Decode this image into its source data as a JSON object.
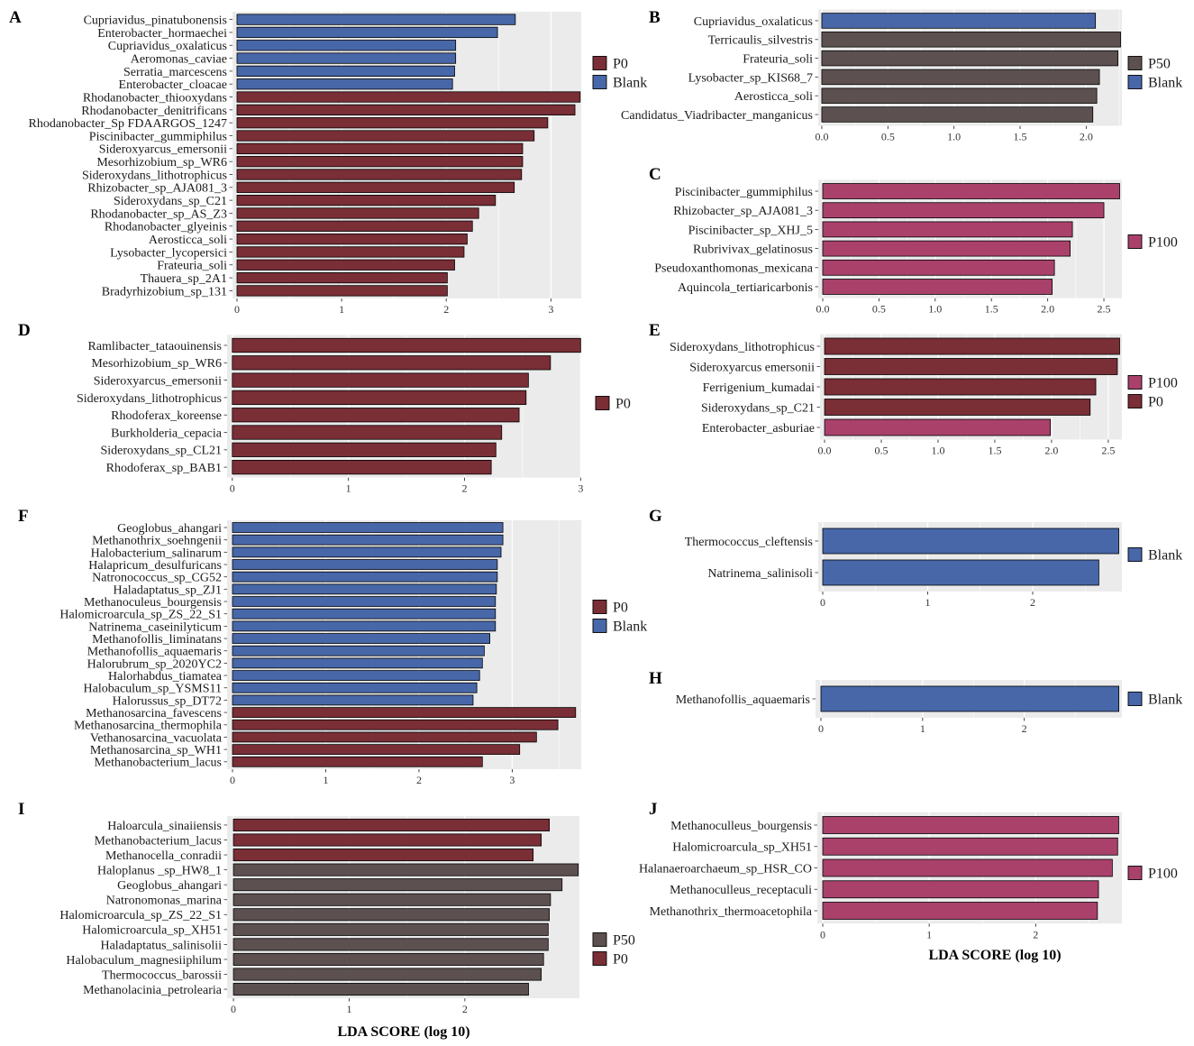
{
  "colors": {
    "Blank": "#4767a8",
    "P0": "#7a2e36",
    "P50": "#5c5150",
    "P100": "#a9416b",
    "panel_background": "#ebebeb",
    "gridline": "#ffffff",
    "bar_outline": "#000000"
  },
  "chart_data": [
    {
      "panel": "A",
      "type": "bar",
      "orientation": "horizontal",
      "xlabel": "",
      "xlim": [
        -0.043,
        3.29
      ],
      "xticks": [
        0,
        1,
        2,
        3
      ],
      "tick_labels": [
        "0",
        "1",
        "2",
        "3"
      ],
      "legend": [
        "P0",
        "Blank"
      ],
      "bars": [
        {
          "label": "Cupriavidus_pinatubonensis",
          "value": 2.66,
          "group": "Blank"
        },
        {
          "label": "Enterobacter_hormaechei",
          "value": 2.49,
          "group": "Blank"
        },
        {
          "label": "Cupriavidus_oxalaticus",
          "value": 2.09,
          "group": "Blank"
        },
        {
          "label": "Aeromonas_caviae",
          "value": 2.09,
          "group": "Blank"
        },
        {
          "label": "Serratia_marcescens",
          "value": 2.08,
          "group": "Blank"
        },
        {
          "label": "Enterobacter_cloacae",
          "value": 2.06,
          "group": "Blank"
        },
        {
          "label": "Rhodanobacter_thiooxydans",
          "value": 3.28,
          "group": "P0"
        },
        {
          "label": "Rhodanobacter_denitrificans",
          "value": 3.23,
          "group": "P0"
        },
        {
          "label": "Rhodanobacter_Sp FDAARGOS_1247",
          "value": 2.97,
          "group": "P0"
        },
        {
          "label": "Piscinibacter_gummiphilus",
          "value": 2.84,
          "group": "P0"
        },
        {
          "label": "Sideroxyarcus_emersonii",
          "value": 2.73,
          "group": "P0"
        },
        {
          "label": "Mesorhizobium_sp_WR6",
          "value": 2.73,
          "group": "P0"
        },
        {
          "label": "Sideroxydans_lithotrophicus",
          "value": 2.72,
          "group": "P0"
        },
        {
          "label": "Rhizobacter_sp_AJA081_3",
          "value": 2.65,
          "group": "P0"
        },
        {
          "label": "Sideroxydans_sp_C21",
          "value": 2.47,
          "group": "P0"
        },
        {
          "label": "Rhodanobacter_sp_AS_Z3",
          "value": 2.31,
          "group": "P0"
        },
        {
          "label": "Rhodanobacter_glyeinis",
          "value": 2.25,
          "group": "P0"
        },
        {
          "label": "Aerosticca_soli",
          "value": 2.2,
          "group": "P0"
        },
        {
          "label": "Lysobacter_lycopersici",
          "value": 2.17,
          "group": "P0"
        },
        {
          "label": "Frateuria_soli",
          "value": 2.08,
          "group": "P0"
        },
        {
          "label": "Thauera_sp_2A1",
          "value": 2.01,
          "group": "P0"
        },
        {
          "label": "Bradyrhizobium_sp_131",
          "value": 2.01,
          "group": "P0"
        }
      ]
    },
    {
      "panel": "B",
      "type": "bar",
      "orientation": "horizontal",
      "xlabel": "",
      "xlim": [
        -0.027,
        2.27
      ],
      "xticks": [
        0,
        0.5,
        1,
        1.5,
        2
      ],
      "tick_labels": [
        "0.0",
        "0.5",
        "1.0",
        "1.5",
        "2.0"
      ],
      "legend": [
        "P50",
        "Blank"
      ],
      "bars": [
        {
          "label": "Cupriavidus_oxalaticus",
          "value": 2.07,
          "group": "Blank"
        },
        {
          "label": "Terricaulis_silvestris",
          "value": 2.26,
          "group": "P50"
        },
        {
          "label": "Frateuria_soli",
          "value": 2.24,
          "group": "P50"
        },
        {
          "label": "Lysobacter_sp_KIS68_7",
          "value": 2.1,
          "group": "P50"
        },
        {
          "label": "Aerosticca_soli",
          "value": 2.08,
          "group": "P50"
        },
        {
          "label": "Candidatus_Viadribacter_manganicus",
          "value": 2.05,
          "group": "P50"
        }
      ]
    },
    {
      "panel": "C",
      "type": "bar",
      "orientation": "horizontal",
      "xlabel": "",
      "xlim": [
        -0.04,
        2.66
      ],
      "xticks": [
        0,
        0.5,
        1,
        1.5,
        2,
        2.5
      ],
      "tick_labels": [
        "0.0",
        "0.5",
        "1.0",
        "1.5",
        "2.0",
        "2.5"
      ],
      "legend": [
        "P100"
      ],
      "bars": [
        {
          "label": "Piscinibacter_gummiphilus",
          "value": 2.64,
          "group": "P100"
        },
        {
          "label": "Rhizobacter_sp_AJA081_3",
          "value": 2.5,
          "group": "P100"
        },
        {
          "label": "Piscinibacter_sp_XHJ_5",
          "value": 2.22,
          "group": "P100"
        },
        {
          "label": "Rubrivivax_gelatinosus",
          "value": 2.2,
          "group": "P100"
        },
        {
          "label": "Pseudoxanthomonas_mexicana",
          "value": 2.06,
          "group": "P100"
        },
        {
          "label": "Aquincola_tertiaricarbonis",
          "value": 2.04,
          "group": "P100"
        }
      ]
    },
    {
      "panel": "D",
      "type": "bar",
      "orientation": "horizontal",
      "xlabel": "",
      "xlim": [
        -0.045,
        3.005
      ],
      "xticks": [
        0,
        1,
        2,
        3
      ],
      "tick_labels": [
        "0",
        "1",
        "2",
        "3"
      ],
      "legend": [
        "P0"
      ],
      "bars": [
        {
          "label": "Ramlibacter_tataouinensis",
          "value": 3.0,
          "group": "P0"
        },
        {
          "label": "Mesorhizobium_sp_WR6",
          "value": 2.74,
          "group": "P0"
        },
        {
          "label": "Sideroxyarcus_emersonii",
          "value": 2.55,
          "group": "P0"
        },
        {
          "label": "Sideroxydans_lithotrophicus",
          "value": 2.53,
          "group": "P0"
        },
        {
          "label": "Rhodoferax_koreense",
          "value": 2.47,
          "group": "P0"
        },
        {
          "label": "Burkholderia_cepacia",
          "value": 2.32,
          "group": "P0"
        },
        {
          "label": "Sideroxydans_sp_CL21",
          "value": 2.27,
          "group": "P0"
        },
        {
          "label": "Rhodoferax_sp_BAB1",
          "value": 2.23,
          "group": "P0"
        }
      ]
    },
    {
      "panel": "E",
      "type": "bar",
      "orientation": "horizontal",
      "xlabel": "",
      "xlim": [
        -0.04,
        2.62
      ],
      "xticks": [
        0,
        0.5,
        1,
        1.5,
        2,
        2.5
      ],
      "tick_labels": [
        "0.0",
        "0.5",
        "1.0",
        "1.5",
        "2.0",
        "2.5"
      ],
      "legend": [
        "P100",
        "P0"
      ],
      "bars": [
        {
          "label": "Sideroxydans_lithotrophicus",
          "value": 2.6,
          "group": "P0"
        },
        {
          "label": "Sideroxyarcus emersonii",
          "value": 2.58,
          "group": "P0"
        },
        {
          "label": "Ferrigenium_kumadai",
          "value": 2.39,
          "group": "P0"
        },
        {
          "label": "Sideroxydans_sp_C21",
          "value": 2.34,
          "group": "P0"
        },
        {
          "label": "Enterobacter_asburiae",
          "value": 1.99,
          "group": "P100"
        }
      ]
    },
    {
      "panel": "F",
      "type": "bar",
      "orientation": "horizontal",
      "xlabel": "",
      "xlim": [
        -0.058,
        3.74
      ],
      "xticks": [
        0,
        1,
        2,
        3
      ],
      "tick_labels": [
        "0",
        "1",
        "2",
        "3"
      ],
      "legend": [
        "P0",
        "Blank"
      ],
      "bars": [
        {
          "label": "Geoglobus_ahangari",
          "value": 2.9,
          "group": "Blank"
        },
        {
          "label": "Methanothrix_soehngenii",
          "value": 2.9,
          "group": "Blank"
        },
        {
          "label": "Halobacterium_salinarum",
          "value": 2.88,
          "group": "Blank"
        },
        {
          "label": "Halapricum_desulfuricans",
          "value": 2.84,
          "group": "Blank"
        },
        {
          "label": "Natronococcus_sp_CG52",
          "value": 2.84,
          "group": "Blank"
        },
        {
          "label": "Haladaptatus_sp_ZJ1",
          "value": 2.83,
          "group": "Blank"
        },
        {
          "label": "Methanoculeus_bourgensis",
          "value": 2.82,
          "group": "Blank"
        },
        {
          "label": "Halomicroarcula_sp_ZS_22_S1",
          "value": 2.82,
          "group": "Blank"
        },
        {
          "label": "Natrinema_caseinilyticum",
          "value": 2.82,
          "group": "Blank"
        },
        {
          "label": "Methanofollis_liminatans",
          "value": 2.76,
          "group": "Blank"
        },
        {
          "label": "Methanofollis_aquaemaris",
          "value": 2.7,
          "group": "Blank"
        },
        {
          "label": "Halorubrum_sp_2020YC2",
          "value": 2.68,
          "group": "Blank"
        },
        {
          "label": "Halorhabdus_tiamatea",
          "value": 2.65,
          "group": "Blank"
        },
        {
          "label": "Halobaculum_sp_YSMS11",
          "value": 2.62,
          "group": "Blank"
        },
        {
          "label": "Halorussus_sp_DT72",
          "value": 2.58,
          "group": "Blank"
        },
        {
          "label": "Methanosarcina_favescens",
          "value": 3.68,
          "group": "P0"
        },
        {
          "label": "Methanosarcina_thermophila",
          "value": 3.49,
          "group": "P0"
        },
        {
          "label": "Vethanosarcina_vacuolata",
          "value": 3.26,
          "group": "P0"
        },
        {
          "label": "Methanosarcina_sp_WH1",
          "value": 3.08,
          "group": "P0"
        },
        {
          "label": "Methanobacterium_lacus",
          "value": 2.68,
          "group": "P0"
        }
      ]
    },
    {
      "panel": "G",
      "type": "bar",
      "orientation": "horizontal",
      "xlabel": "",
      "xlim": [
        -0.043,
        2.85
      ],
      "xticks": [
        0,
        1,
        2
      ],
      "tick_labels": [
        "0",
        "1",
        "2"
      ],
      "legend": [
        "Blank"
      ],
      "bars": [
        {
          "label": "Thermococcus_cleftensis",
          "value": 2.82,
          "group": "Blank"
        },
        {
          "label": "Natrinema_salinisoli",
          "value": 2.63,
          "group": "Blank"
        }
      ]
    },
    {
      "panel": "H",
      "type": "bar",
      "orientation": "horizontal",
      "xlabel": "",
      "xlim": [
        -0.053,
        2.96
      ],
      "xticks": [
        0,
        1,
        2
      ],
      "tick_labels": [
        "0",
        "1",
        "2"
      ],
      "legend": [
        "Blank"
      ],
      "bars": [
        {
          "label": "Methanofollis_aquaemaris",
          "value": 2.93,
          "group": "Blank"
        }
      ]
    },
    {
      "panel": "I",
      "type": "bar",
      "orientation": "horizontal",
      "xlabel": "LDA SCORE (log 10)",
      "xlim": [
        -0.055,
        2.99
      ],
      "xticks": [
        0,
        1,
        2
      ],
      "tick_labels": [
        "0",
        "1",
        "2"
      ],
      "legend": [
        "P50",
        "P0"
      ],
      "bars": [
        {
          "label": "Haloarcula_sinaiiensis",
          "value": 2.73,
          "group": "P0"
        },
        {
          "label": "Methanobacterium_lacus",
          "value": 2.66,
          "group": "P0"
        },
        {
          "label": "Methanocella_conradii",
          "value": 2.59,
          "group": "P0"
        },
        {
          "label": "Haloplanus _sp_HW8_1",
          "value": 2.98,
          "group": "P50"
        },
        {
          "label": "Geoglobus_ahangari",
          "value": 2.84,
          "group": "P50"
        },
        {
          "label": "Natronomonas_marina",
          "value": 2.74,
          "group": "P50"
        },
        {
          "label": "Halomicroarcula_sp_ZS_22_S1",
          "value": 2.73,
          "group": "P50"
        },
        {
          "label": "Halomicroarcula_sp_XH51",
          "value": 2.72,
          "group": "P50"
        },
        {
          "label": "Haladaptatus_salinisolii",
          "value": 2.72,
          "group": "P50"
        },
        {
          "label": "Halobaculum_magnesiiphilum",
          "value": 2.68,
          "group": "P50"
        },
        {
          "label": "Thermococcus_barossii",
          "value": 2.66,
          "group": "P50"
        },
        {
          "label": "Methanolacinia_petrolearia",
          "value": 2.55,
          "group": "P50"
        }
      ]
    },
    {
      "panel": "J",
      "type": "bar",
      "orientation": "horizontal",
      "xlabel": "LDA SCORE (log 10)",
      "xlim": [
        -0.051,
        2.81
      ],
      "xticks": [
        0,
        1,
        2
      ],
      "tick_labels": [
        "0",
        "1",
        "2"
      ],
      "legend": [
        "P100"
      ],
      "bars": [
        {
          "label": "Methanoculleus_bourgensis",
          "value": 2.78,
          "group": "P100"
        },
        {
          "label": "Halomicroarcula_sp_XH51",
          "value": 2.77,
          "group": "P100"
        },
        {
          "label": "Halanaeroarchaeum_sp_HSR_CO",
          "value": 2.72,
          "group": "P100"
        },
        {
          "label": "Methanoculleus_receptaculi",
          "value": 2.59,
          "group": "P100"
        },
        {
          "label": "Methanothrix_thermoacetophila",
          "value": 2.58,
          "group": "P100"
        }
      ]
    }
  ]
}
